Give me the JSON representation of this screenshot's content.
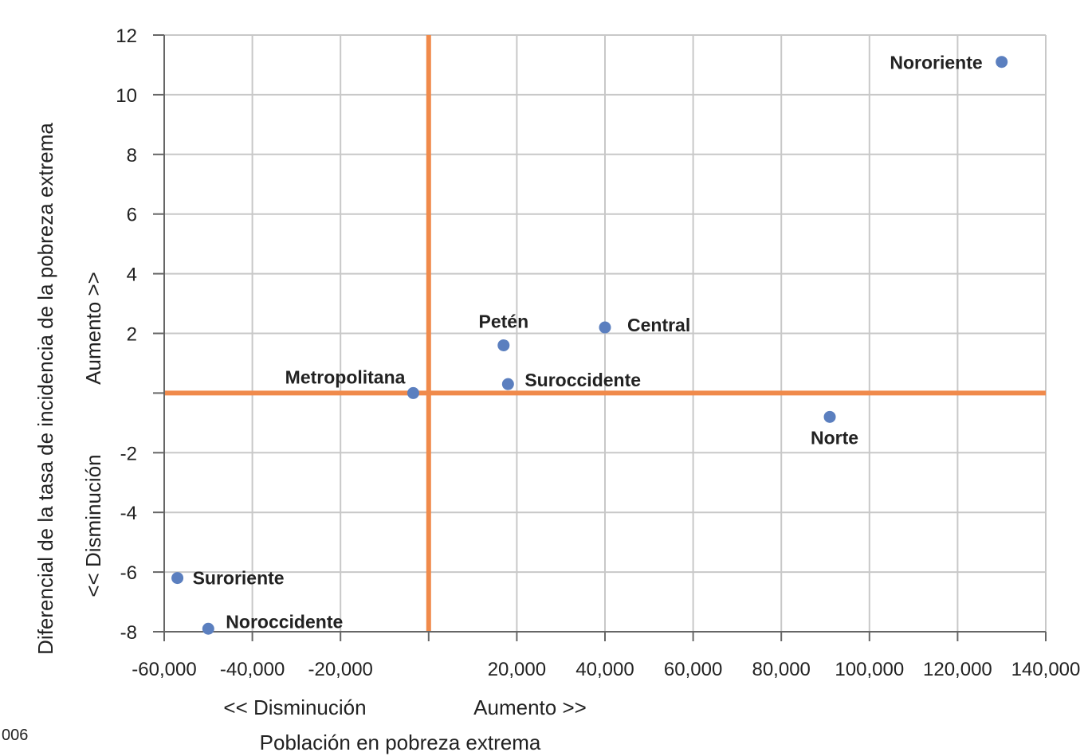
{
  "chart_data": {
    "type": "scatter",
    "x_ticks": [
      "-60,000",
      "-40,000",
      "-20,000",
      "20,000",
      "40,000",
      "60,000",
      "80,000",
      "100,000",
      "120,000",
      "140,000"
    ],
    "x_tick_values": [
      -60000,
      -40000,
      -20000,
      20000,
      40000,
      60000,
      80000,
      100000,
      120000,
      140000
    ],
    "y_ticks": [
      "12",
      "10",
      "8",
      "6",
      "4",
      "2",
      "-2",
      "-4",
      "-6",
      "-8"
    ],
    "y_tick_values": [
      12,
      10,
      8,
      6,
      4,
      2,
      -2,
      -4,
      -6,
      -8
    ],
    "xlim": [
      -60000,
      140000
    ],
    "ylim": [
      -8,
      12
    ],
    "grid": true,
    "reference_lines": {
      "x": 0,
      "y": 0,
      "color": "#f08a4b"
    },
    "point_color": "#5b7fbf",
    "points": [
      {
        "label": "Nororiente",
        "x": 130000,
        "y": 11.1
      },
      {
        "label": "Petén",
        "x": 17000,
        "y": 1.6
      },
      {
        "label": "Central",
        "x": 40000,
        "y": 2.2
      },
      {
        "label": "Metropolitana",
        "x": -3500,
        "y": 0
      },
      {
        "label": "Suroccidente",
        "x": 18000,
        "y": 0.3
      },
      {
        "label": "Norte",
        "x": 91000,
        "y": -0.8
      },
      {
        "label": "Suroriente",
        "x": -57000,
        "y": -6.2
      },
      {
        "label": "Noroccidente",
        "x": -50000,
        "y": -7.9
      }
    ],
    "xlabel": "Población en pobreza extrema",
    "x_direction_labels": [
      "<< Disminución",
      "Aumento >>"
    ],
    "ylabel": "Diferencial de la tasa de incidencia de la pobreza extrema",
    "y_direction_labels": [
      "<< Disminución",
      "Aumento >>"
    ]
  },
  "corner_text": "006"
}
